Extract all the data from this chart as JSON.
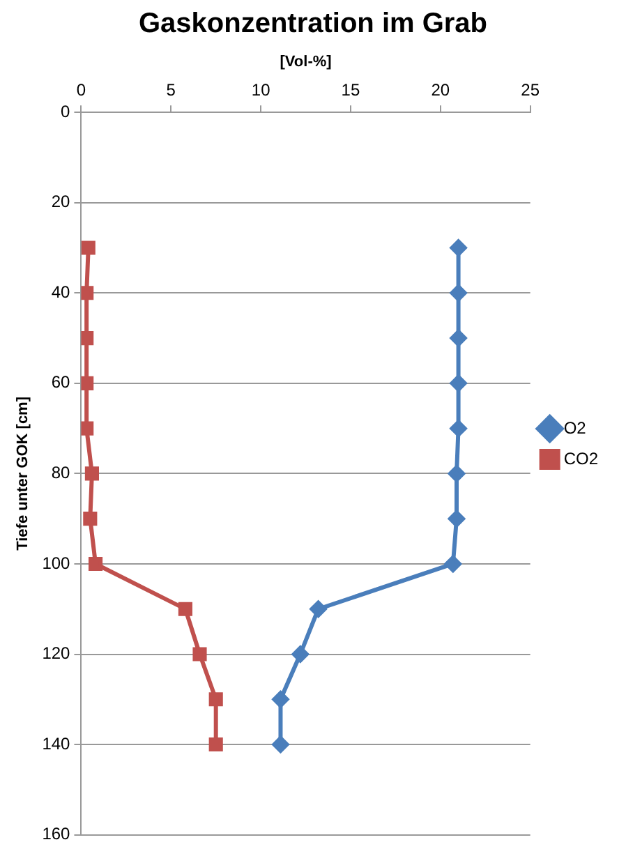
{
  "chart_data": {
    "type": "line",
    "title": "Gaskonzentration im Grab",
    "xlabel": "[Vol-%]",
    "ylabel": "Tiefe unter GOK [cm]",
    "series": [
      {
        "name": "O2",
        "color": "#4a7ebb",
        "marker": "diamond",
        "x": [
          21,
          21,
          21,
          21,
          21,
          20.9,
          20.9,
          20.7,
          13.2,
          12.2,
          11.1,
          11.1
        ],
        "values": [
          30,
          40,
          50,
          60,
          70,
          80,
          90,
          100,
          110,
          120,
          130,
          140
        ]
      },
      {
        "name": "CO2",
        "color": "#c0504d",
        "marker": "square",
        "x": [
          0.4,
          0.3,
          0.3,
          0.3,
          0.3,
          0.6,
          0.5,
          0.8,
          5.8,
          6.6,
          7.5,
          7.5
        ],
        "values": [
          30,
          40,
          50,
          60,
          70,
          80,
          90,
          100,
          110,
          120,
          130,
          140
        ]
      }
    ],
    "xlim": [
      0,
      25
    ],
    "xticks": [
      0,
      5,
      10,
      15,
      20,
      25
    ],
    "ylim": [
      160,
      0
    ],
    "yticks": [
      0,
      20,
      40,
      60,
      80,
      100,
      120,
      140,
      160
    ],
    "grid": "y",
    "legend": "right",
    "line_style": "solid"
  }
}
